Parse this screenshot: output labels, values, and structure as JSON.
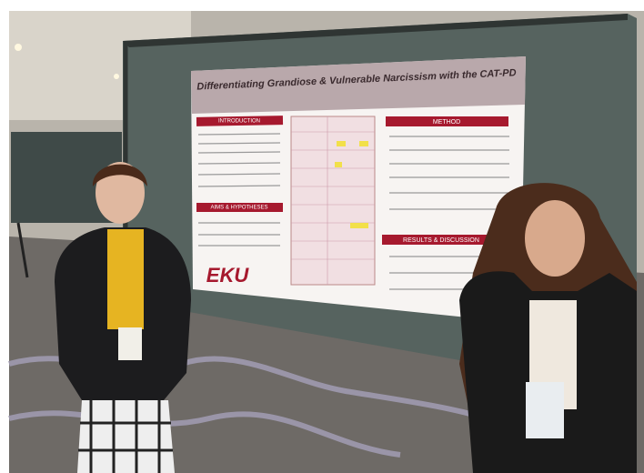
{
  "poster": {
    "title": "Differentiating Grandiose & Vulnerable Narcissism with the CAT-PD",
    "sections": [
      "INTRODUCTION",
      "METHOD",
      "AIMS & HYPOTHESES",
      "RESULTS & DISCUSSION"
    ],
    "logo": "EKU"
  }
}
